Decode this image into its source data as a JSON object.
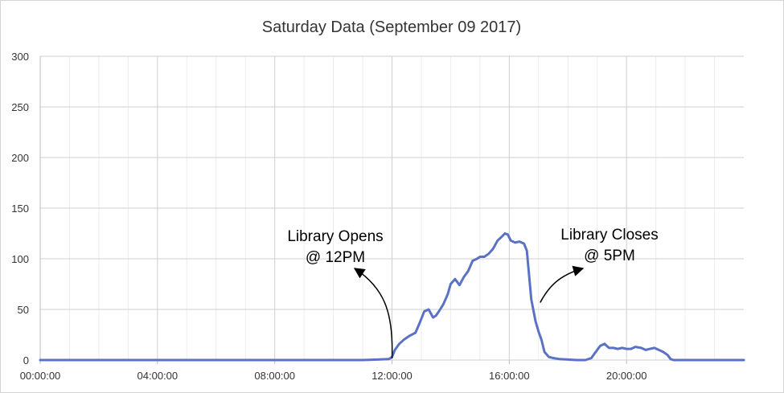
{
  "chart_data": {
    "type": "line",
    "title": "Saturday Data (September 09 2017)",
    "xlabel": "",
    "ylabel": "",
    "xlim": [
      0,
      24
    ],
    "ylim": [
      0,
      300
    ],
    "x_tick_labels": [
      "00:00:00",
      "04:00:00",
      "08:00:00",
      "12:00:00",
      "16:00:00",
      "20:00:00"
    ],
    "x_tick_values": [
      0,
      4,
      8,
      12,
      16,
      20
    ],
    "y_tick_labels": [
      "0",
      "50",
      "100",
      "150",
      "200",
      "250",
      "300"
    ],
    "y_tick_values": [
      0,
      50,
      100,
      150,
      200,
      250,
      300
    ],
    "grid": true,
    "series_color": "#5b72c4",
    "series": [
      {
        "x": [
          0,
          4,
          8,
          10,
          11,
          11.5,
          11.9,
          12.0,
          12.1,
          12.25,
          12.4,
          12.6,
          12.8,
          12.95,
          13.1,
          13.25,
          13.4,
          13.5,
          13.6,
          13.75,
          13.9,
          14.0,
          14.15,
          14.3,
          14.45,
          14.6,
          14.75,
          14.9,
          15.0,
          15.15,
          15.3,
          15.45,
          15.6,
          15.75,
          15.85,
          15.95,
          16.05,
          16.2,
          16.35,
          16.5,
          16.6,
          16.75,
          16.9,
          17.0,
          17.1,
          17.2,
          17.35,
          17.5,
          17.7,
          18.0,
          18.3,
          18.6,
          18.8,
          18.95,
          19.1,
          19.25,
          19.4,
          19.55,
          19.7,
          19.85,
          20.0,
          20.15,
          20.3,
          20.5,
          20.65,
          20.8,
          20.95,
          21.1,
          21.25,
          21.4,
          21.5,
          21.6,
          22,
          23,
          24
        ],
        "y": [
          0,
          0,
          0,
          0,
          0,
          0.5,
          1,
          3,
          10,
          16,
          20,
          24,
          27,
          37,
          48,
          50,
          42,
          44,
          48,
          55,
          65,
          75,
          80,
          74,
          82,
          88,
          98,
          100,
          102,
          102,
          105,
          110,
          118,
          122,
          125,
          124,
          118,
          116,
          117,
          115,
          108,
          60,
          38,
          28,
          20,
          8,
          3,
          2,
          1,
          0.5,
          0,
          0,
          2,
          8,
          14,
          16,
          12,
          12,
          11,
          12,
          11,
          11,
          13,
          12,
          10,
          11,
          12,
          10,
          8,
          5,
          1,
          0,
          0,
          0,
          0
        ]
      }
    ],
    "annotations": [
      {
        "text_line1": "Library Opens",
        "text_line2": "@ 12PM",
        "points_to_x": 12.0,
        "points_to_y": 0
      },
      {
        "text_line1": "Library Closes",
        "text_line2": "@ 5PM",
        "points_to_x": 17.0,
        "points_to_y": 52
      }
    ]
  }
}
